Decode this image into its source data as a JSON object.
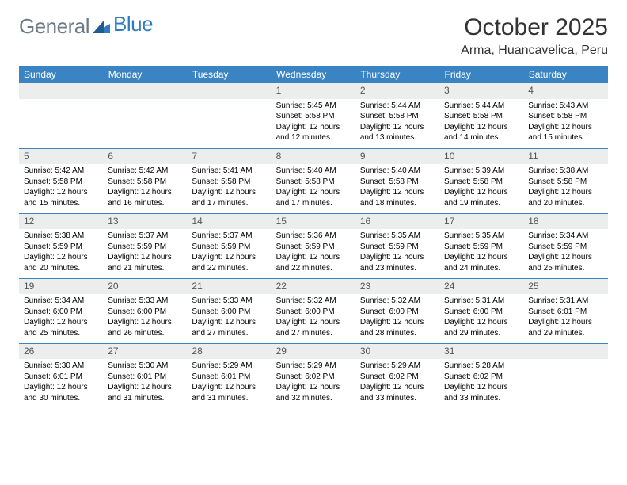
{
  "brand": {
    "word1": "General",
    "word2": "Blue"
  },
  "header": {
    "title": "October 2025",
    "location": "Arma, Huancavelica, Peru"
  },
  "colors": {
    "header_bg": "#3b84c4",
    "header_text": "#ffffff",
    "daynum_bg": "#eceded",
    "rule": "#3b84c4",
    "logo_gray": "#6c7a89",
    "logo_blue": "#2f7bbf",
    "page_bg": "#ffffff"
  },
  "weekdays": [
    "Sunday",
    "Monday",
    "Tuesday",
    "Wednesday",
    "Thursday",
    "Friday",
    "Saturday"
  ],
  "weeks": [
    [
      {
        "day": ""
      },
      {
        "day": ""
      },
      {
        "day": ""
      },
      {
        "day": "1",
        "sunrise": "Sunrise: 5:45 AM",
        "sunset": "Sunset: 5:58 PM",
        "daylight": "Daylight: 12 hours and 12 minutes."
      },
      {
        "day": "2",
        "sunrise": "Sunrise: 5:44 AM",
        "sunset": "Sunset: 5:58 PM",
        "daylight": "Daylight: 12 hours and 13 minutes."
      },
      {
        "day": "3",
        "sunrise": "Sunrise: 5:44 AM",
        "sunset": "Sunset: 5:58 PM",
        "daylight": "Daylight: 12 hours and 14 minutes."
      },
      {
        "day": "4",
        "sunrise": "Sunrise: 5:43 AM",
        "sunset": "Sunset: 5:58 PM",
        "daylight": "Daylight: 12 hours and 15 minutes."
      }
    ],
    [
      {
        "day": "5",
        "sunrise": "Sunrise: 5:42 AM",
        "sunset": "Sunset: 5:58 PM",
        "daylight": "Daylight: 12 hours and 15 minutes."
      },
      {
        "day": "6",
        "sunrise": "Sunrise: 5:42 AM",
        "sunset": "Sunset: 5:58 PM",
        "daylight": "Daylight: 12 hours and 16 minutes."
      },
      {
        "day": "7",
        "sunrise": "Sunrise: 5:41 AM",
        "sunset": "Sunset: 5:58 PM",
        "daylight": "Daylight: 12 hours and 17 minutes."
      },
      {
        "day": "8",
        "sunrise": "Sunrise: 5:40 AM",
        "sunset": "Sunset: 5:58 PM",
        "daylight": "Daylight: 12 hours and 17 minutes."
      },
      {
        "day": "9",
        "sunrise": "Sunrise: 5:40 AM",
        "sunset": "Sunset: 5:58 PM",
        "daylight": "Daylight: 12 hours and 18 minutes."
      },
      {
        "day": "10",
        "sunrise": "Sunrise: 5:39 AM",
        "sunset": "Sunset: 5:58 PM",
        "daylight": "Daylight: 12 hours and 19 minutes."
      },
      {
        "day": "11",
        "sunrise": "Sunrise: 5:38 AM",
        "sunset": "Sunset: 5:58 PM",
        "daylight": "Daylight: 12 hours and 20 minutes."
      }
    ],
    [
      {
        "day": "12",
        "sunrise": "Sunrise: 5:38 AM",
        "sunset": "Sunset: 5:59 PM",
        "daylight": "Daylight: 12 hours and 20 minutes."
      },
      {
        "day": "13",
        "sunrise": "Sunrise: 5:37 AM",
        "sunset": "Sunset: 5:59 PM",
        "daylight": "Daylight: 12 hours and 21 minutes."
      },
      {
        "day": "14",
        "sunrise": "Sunrise: 5:37 AM",
        "sunset": "Sunset: 5:59 PM",
        "daylight": "Daylight: 12 hours and 22 minutes."
      },
      {
        "day": "15",
        "sunrise": "Sunrise: 5:36 AM",
        "sunset": "Sunset: 5:59 PM",
        "daylight": "Daylight: 12 hours and 22 minutes."
      },
      {
        "day": "16",
        "sunrise": "Sunrise: 5:35 AM",
        "sunset": "Sunset: 5:59 PM",
        "daylight": "Daylight: 12 hours and 23 minutes."
      },
      {
        "day": "17",
        "sunrise": "Sunrise: 5:35 AM",
        "sunset": "Sunset: 5:59 PM",
        "daylight": "Daylight: 12 hours and 24 minutes."
      },
      {
        "day": "18",
        "sunrise": "Sunrise: 5:34 AM",
        "sunset": "Sunset: 5:59 PM",
        "daylight": "Daylight: 12 hours and 25 minutes."
      }
    ],
    [
      {
        "day": "19",
        "sunrise": "Sunrise: 5:34 AM",
        "sunset": "Sunset: 6:00 PM",
        "daylight": "Daylight: 12 hours and 25 minutes."
      },
      {
        "day": "20",
        "sunrise": "Sunrise: 5:33 AM",
        "sunset": "Sunset: 6:00 PM",
        "daylight": "Daylight: 12 hours and 26 minutes."
      },
      {
        "day": "21",
        "sunrise": "Sunrise: 5:33 AM",
        "sunset": "Sunset: 6:00 PM",
        "daylight": "Daylight: 12 hours and 27 minutes."
      },
      {
        "day": "22",
        "sunrise": "Sunrise: 5:32 AM",
        "sunset": "Sunset: 6:00 PM",
        "daylight": "Daylight: 12 hours and 27 minutes."
      },
      {
        "day": "23",
        "sunrise": "Sunrise: 5:32 AM",
        "sunset": "Sunset: 6:00 PM",
        "daylight": "Daylight: 12 hours and 28 minutes."
      },
      {
        "day": "24",
        "sunrise": "Sunrise: 5:31 AM",
        "sunset": "Sunset: 6:00 PM",
        "daylight": "Daylight: 12 hours and 29 minutes."
      },
      {
        "day": "25",
        "sunrise": "Sunrise: 5:31 AM",
        "sunset": "Sunset: 6:01 PM",
        "daylight": "Daylight: 12 hours and 29 minutes."
      }
    ],
    [
      {
        "day": "26",
        "sunrise": "Sunrise: 5:30 AM",
        "sunset": "Sunset: 6:01 PM",
        "daylight": "Daylight: 12 hours and 30 minutes."
      },
      {
        "day": "27",
        "sunrise": "Sunrise: 5:30 AM",
        "sunset": "Sunset: 6:01 PM",
        "daylight": "Daylight: 12 hours and 31 minutes."
      },
      {
        "day": "28",
        "sunrise": "Sunrise: 5:29 AM",
        "sunset": "Sunset: 6:01 PM",
        "daylight": "Daylight: 12 hours and 31 minutes."
      },
      {
        "day": "29",
        "sunrise": "Sunrise: 5:29 AM",
        "sunset": "Sunset: 6:02 PM",
        "daylight": "Daylight: 12 hours and 32 minutes."
      },
      {
        "day": "30",
        "sunrise": "Sunrise: 5:29 AM",
        "sunset": "Sunset: 6:02 PM",
        "daylight": "Daylight: 12 hours and 33 minutes."
      },
      {
        "day": "31",
        "sunrise": "Sunrise: 5:28 AM",
        "sunset": "Sunset: 6:02 PM",
        "daylight": "Daylight: 12 hours and 33 minutes."
      },
      {
        "day": ""
      }
    ]
  ]
}
